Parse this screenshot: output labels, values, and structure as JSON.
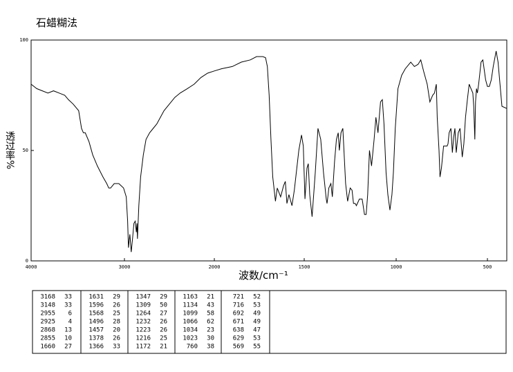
{
  "chart_data": {
    "type": "line",
    "title": "石蜡糊法",
    "x_label": "波数/cm⁻¹",
    "y_label": "透过率%",
    "color": "#000000",
    "xlim": [
      4000,
      400
    ],
    "xticks": [
      4000,
      3000,
      2000,
      1500,
      1000,
      500
    ],
    "ylim": [
      0,
      100
    ],
    "yticks": [
      0,
      50,
      100
    ],
    "x": [
      4000,
      3940,
      3880,
      3820,
      3760,
      3700,
      3640,
      3600,
      3550,
      3490,
      3460,
      3440,
      3420,
      3380,
      3340,
      3290,
      3230,
      3190,
      3168,
      3148,
      3110,
      3060,
      3010,
      2980,
      2965,
      2955,
      2940,
      2925,
      2910,
      2895,
      2880,
      2868,
      2860,
      2855,
      2840,
      2820,
      2790,
      2760,
      2720,
      2680,
      2640,
      2600,
      2560,
      2500,
      2440,
      2380,
      2300,
      2225,
      2150,
      2075,
      2000,
      1960,
      1900,
      1850,
      1800,
      1765,
      1730,
      1715,
      1705,
      1695,
      1685,
      1675,
      1660,
      1650,
      1631,
      1615,
      1605,
      1596,
      1585,
      1568,
      1555,
      1530,
      1515,
      1505,
      1496,
      1485,
      1478,
      1470,
      1457,
      1440,
      1425,
      1410,
      1395,
      1380,
      1376,
      1370,
      1366,
      1355,
      1347,
      1335,
      1325,
      1315,
      1309,
      1300,
      1290,
      1275,
      1264,
      1250,
      1240,
      1232,
      1223,
      1216,
      1200,
      1185,
      1172,
      1163,
      1155,
      1145,
      1134,
      1120,
      1110,
      1099,
      1085,
      1075,
      1066,
      1055,
      1045,
      1034,
      1023,
      1015,
      1005,
      990,
      970,
      950,
      920,
      900,
      880,
      865,
      850,
      830,
      815,
      800,
      790,
      780,
      775,
      765,
      760,
      752,
      740,
      730,
      721,
      716,
      710,
      700,
      692,
      685,
      678,
      671,
      660,
      650,
      638,
      629,
      620,
      610,
      600,
      590,
      580,
      575,
      569,
      565,
      560,
      555,
      548,
      535,
      525,
      510,
      500,
      490,
      480,
      470,
      455,
      445,
      435,
      425,
      400
    ],
    "values": [
      80,
      78,
      77,
      76,
      77,
      76,
      75,
      73,
      71,
      68,
      60,
      58,
      58,
      54,
      48,
      43,
      38,
      35,
      33,
      33,
      35,
      35,
      33,
      29,
      18,
      6,
      12,
      4,
      10,
      17,
      18,
      13,
      17,
      10,
      25,
      38,
      48,
      55,
      58,
      60,
      62,
      65,
      68,
      71,
      74,
      76,
      78,
      80,
      83,
      85,
      86,
      87,
      88,
      90,
      91,
      92.5,
      92.5,
      92,
      88,
      75,
      55,
      38,
      27,
      33,
      29,
      34,
      36,
      26,
      30,
      25,
      32,
      50,
      57,
      52,
      28,
      42,
      44,
      30,
      20,
      40,
      60,
      55,
      40,
      28,
      26,
      30,
      33,
      35,
      29,
      45,
      55,
      58,
      50,
      58,
      60,
      35,
      27,
      33,
      32,
      26,
      26,
      25,
      28,
      28,
      21,
      21,
      30,
      50,
      43,
      55,
      65,
      58,
      72,
      73,
      62,
      40,
      30,
      23,
      30,
      40,
      60,
      78,
      84,
      87,
      90,
      88,
      89,
      91,
      86,
      80,
      72,
      75,
      76,
      80,
      65,
      50,
      38,
      42,
      52,
      52,
      52,
      53,
      58,
      60,
      49,
      56,
      60,
      49,
      58,
      60,
      47,
      53,
      65,
      73,
      80,
      78,
      76,
      70,
      55,
      72,
      78,
      76,
      80,
      90,
      91,
      82,
      79,
      79,
      82,
      88,
      95,
      90,
      80,
      70,
      69
    ]
  },
  "peak_table": [
    [
      [
        3168,
        33
      ],
      [
        3148,
        33
      ],
      [
        2955,
        6
      ],
      [
        2925,
        4
      ],
      [
        2868,
        13
      ],
      [
        2855,
        10
      ],
      [
        1660,
        27
      ]
    ],
    [
      [
        1631,
        29
      ],
      [
        1596,
        26
      ],
      [
        1568,
        25
      ],
      [
        1496,
        28
      ],
      [
        1457,
        20
      ],
      [
        1378,
        26
      ],
      [
        1366,
        33
      ]
    ],
    [
      [
        1347,
        29
      ],
      [
        1309,
        50
      ],
      [
        1264,
        27
      ],
      [
        1232,
        26
      ],
      [
        1223,
        26
      ],
      [
        1216,
        25
      ],
      [
        1172,
        21
      ]
    ],
    [
      [
        1163,
        21
      ],
      [
        1134,
        43
      ],
      [
        1099,
        58
      ],
      [
        1066,
        62
      ],
      [
        1034,
        23
      ],
      [
        1023,
        30
      ],
      [
        760,
        38
      ]
    ],
    [
      [
        721,
        52
      ],
      [
        716,
        53
      ],
      [
        692,
        49
      ],
      [
        671,
        49
      ],
      [
        638,
        47
      ],
      [
        629,
        53
      ],
      [
        569,
        55
      ]
    ]
  ]
}
